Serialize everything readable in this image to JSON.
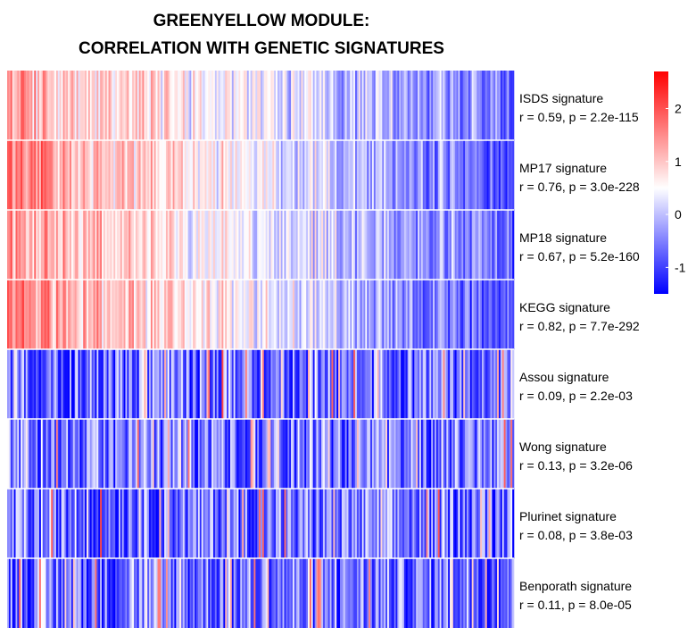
{
  "chart_data": {
    "type": "heatmap",
    "title": [
      "GREENYELLOW MODULE:",
      "CORRELATION WITH GENETIC SIGNATURES"
    ],
    "rows": [
      {
        "name": "ISDS signature",
        "stat": "r = 0.59, p = 2.2e-115"
      },
      {
        "name": "MP17 signature",
        "stat": "r = 0.76, p = 3.0e-228"
      },
      {
        "name": "MP18 signature",
        "stat": "r = 0.67, p = 5.2e-160"
      },
      {
        "name": "KEGG signature",
        "stat": "r = 0.82, p = 7.7e-292"
      },
      {
        "name": "Assou signature",
        "stat": "r = 0.09, p = 2.2e-03"
      },
      {
        "name": "Wong signature",
        "stat": "r = 0.13, p = 3.2e-06"
      },
      {
        "name": "Plurinet signature",
        "stat": "r = 0.08, p = 3.8e-03"
      },
      {
        "name": "Benporath signature",
        "stat": "r = 0.11, p = 8.0e-05"
      }
    ],
    "r_values": [
      0.59,
      0.76,
      0.67,
      0.82,
      0.09,
      0.13,
      0.08,
      0.11
    ],
    "n_columns": 300,
    "value_range": [
      -1.5,
      2.7
    ],
    "color_scale": {
      "low": "#0000ff",
      "mid": "#ffffff",
      "high": "#ff0000",
      "mid_value": 0.5
    },
    "legend": {
      "ticks": [
        2,
        1,
        0,
        -1
      ],
      "placement": "top-right"
    }
  }
}
